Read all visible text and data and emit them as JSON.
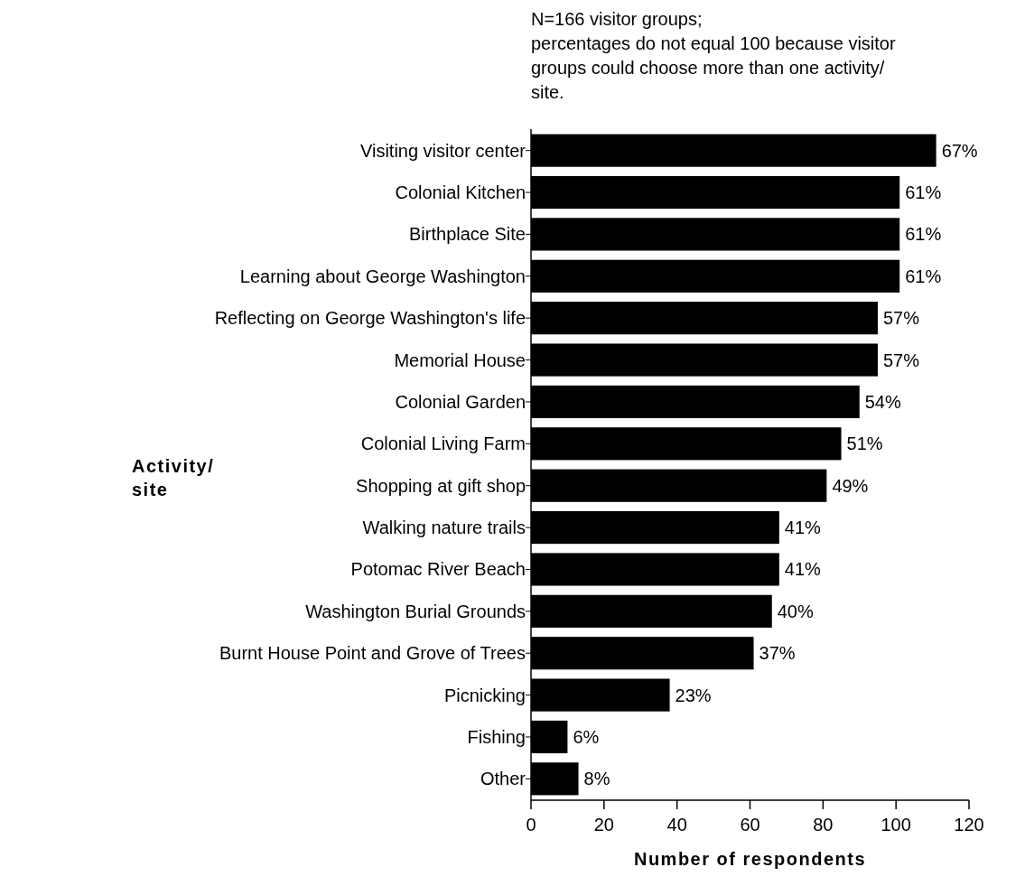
{
  "chart_data": {
    "type": "bar",
    "orientation": "horizontal",
    "categories": [
      "Visiting visitor center",
      "Colonial Kitchen",
      "Birthplace Site",
      "Learning about George Washington",
      "Reflecting on George Washington's life",
      "Memorial House",
      "Colonial Garden",
      "Colonial Living Farm",
      "Shopping at gift shop",
      "Walking nature trails",
      "Potomac River Beach",
      "Washington Burial Grounds",
      "Burnt House Point and Grove of Trees",
      "Picnicking",
      "Fishing",
      "Other"
    ],
    "values": [
      111,
      101,
      101,
      101,
      95,
      95,
      90,
      85,
      81,
      68,
      68,
      66,
      61,
      38,
      10,
      13
    ],
    "color": "#000000",
    "xlim": [
      0,
      120
    ],
    "xticks": [
      0,
      20,
      40,
      60,
      80,
      100,
      120
    ],
    "xlabel": "Number of respondents",
    "ylabel": "Activity/\nsite",
    "annotations": [
      "N=166 visitor groups;\npercentages do not equal 100 because visitor\ngroups could choose more than one activity/\nsite.",
      {
        "text": "67%",
        "x": 111,
        "y": "Visiting visitor center"
      },
      {
        "text": "61%",
        "x": 101,
        "y": "Colonial Kitchen"
      },
      {
        "text": "61%",
        "x": 101,
        "y": "Birthplace Site"
      },
      {
        "text": "61%",
        "x": 101,
        "y": "Learning about George Washington"
      },
      {
        "text": "57%",
        "x": 95,
        "y": "Reflecting on George Washington's life"
      },
      {
        "text": "57%",
        "x": 95,
        "y": "Memorial House"
      },
      {
        "text": "54%",
        "x": 90,
        "y": "Colonial Garden"
      },
      {
        "text": "51%",
        "x": 85,
        "y": "Colonial Living Farm"
      },
      {
        "text": "49%",
        "x": 81,
        "y": "Shopping at gift shop"
      },
      {
        "text": "41%",
        "x": 68,
        "y": "Walking nature trails"
      },
      {
        "text": "41%",
        "x": 68,
        "y": "Potomac River Beach"
      },
      {
        "text": "40%",
        "x": 66,
        "y": "Washington Burial Grounds"
      },
      {
        "text": "37%",
        "x": 61,
        "y": "Burnt House Point and Grove of Trees"
      },
      {
        "text": "23%",
        "x": 38,
        "y": "Picnicking"
      },
      {
        "text": "6%",
        "x": 10,
        "y": "Fishing"
      },
      {
        "text": "8%",
        "x": 13,
        "y": "Other"
      }
    ],
    "grid": false
  }
}
